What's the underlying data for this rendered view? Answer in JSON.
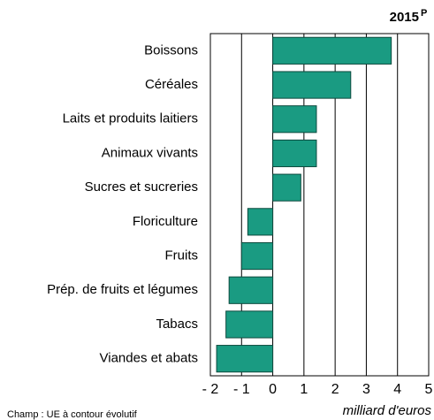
{
  "chart_data": {
    "type": "barh",
    "title": "2015",
    "title_superscript": "P",
    "categories": [
      "Boissons",
      "Céréales",
      "Laits et produits laitiers",
      "Animaux vivants",
      "Sucres et sucreries",
      "Floriculture",
      "Fruits",
      "Prép. de fruits et légumes",
      "Tabacs",
      "Viandes et abats"
    ],
    "values": [
      3.8,
      2.5,
      1.4,
      1.4,
      0.9,
      -0.8,
      -1.0,
      -1.4,
      -1.5,
      -1.8
    ],
    "color": "#1a9b82",
    "xlim": [
      -2,
      5
    ],
    "xticks": [
      {
        "value": -2,
        "label": "- 2"
      },
      {
        "value": -1,
        "label": "- 1"
      },
      0,
      1,
      2,
      3,
      4,
      5
    ],
    "xlabel": "milliard d'euros",
    "grid": true,
    "footnote": "Champ : UE à contour évolutif"
  }
}
